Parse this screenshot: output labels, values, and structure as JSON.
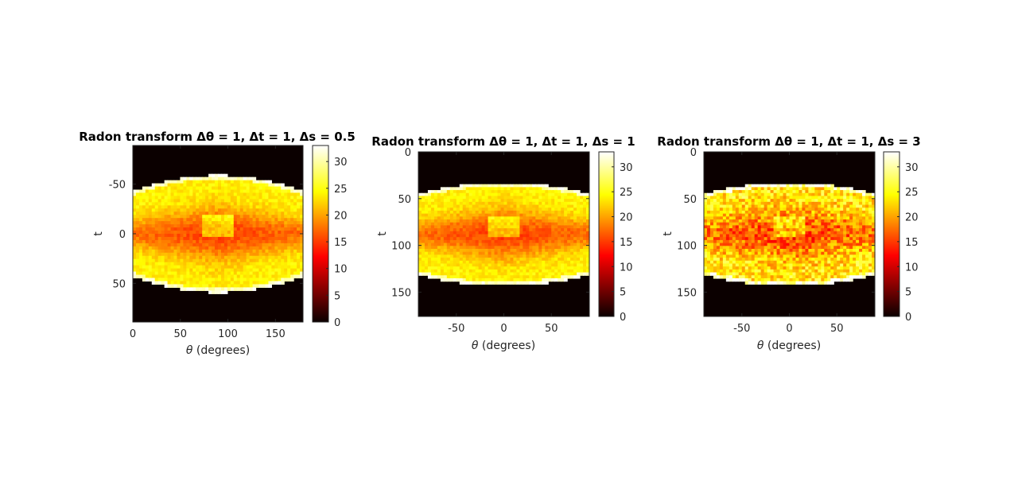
{
  "chart_data": [
    {
      "type": "heatmap",
      "title": "Radon transform Δθ = 1, Δt = 1, Δs = 0.5",
      "xlabel_sym": "θ",
      "xlabel_rest": " (degrees)",
      "ylabel": "t",
      "xlim": [
        0,
        179
      ],
      "ylim": [
        -89,
        89
      ],
      "xticks": [
        0,
        50,
        100,
        150
      ],
      "yticks": [
        -50,
        0,
        50
      ],
      "colorbar": {
        "ticks": [
          0,
          5,
          10,
          15,
          20,
          25,
          30
        ],
        "range": [
          0,
          33
        ]
      },
      "colormap": "hot",
      "shape": {
        "support_half_width": [
          43,
          59
        ],
        "dark_band": 25,
        "noise": "low"
      }
    },
    {
      "type": "heatmap",
      "title": "Radon transform Δθ = 1, Δt = 1, Δs = 1",
      "xlabel_sym": "θ",
      "xlabel_rest": " (degrees)",
      "ylabel": "t",
      "xlim": [
        -90,
        90
      ],
      "ylim": [
        0,
        176
      ],
      "xticks": [
        -50,
        0,
        50
      ],
      "yticks": [
        0,
        50,
        100,
        150
      ],
      "colorbar": {
        "ticks": [
          0,
          5,
          10,
          15,
          20,
          25,
          30
        ],
        "range": [
          0,
          33
        ]
      },
      "colormap": "hot",
      "shape": {
        "support_half_width": [
          43,
          55
        ],
        "dark_band": 25,
        "noise": "low"
      }
    },
    {
      "type": "heatmap",
      "title": "Radon transform Δθ = 1, Δt = 1, Δs = 3",
      "xlabel_sym": "θ",
      "xlabel_rest": " (degrees)",
      "ylabel": "t",
      "xlim": [
        -90,
        90
      ],
      "ylim": [
        0,
        176
      ],
      "xticks": [
        -50,
        0,
        50
      ],
      "yticks": [
        0,
        50,
        100,
        150
      ],
      "colorbar": {
        "ticks": [
          0,
          5,
          10,
          15,
          20,
          25,
          30
        ],
        "range": [
          0,
          33
        ]
      },
      "colormap": "hot",
      "shape": {
        "support_half_width": [
          43,
          55
        ],
        "dark_band": 25,
        "noise": "high"
      }
    }
  ]
}
